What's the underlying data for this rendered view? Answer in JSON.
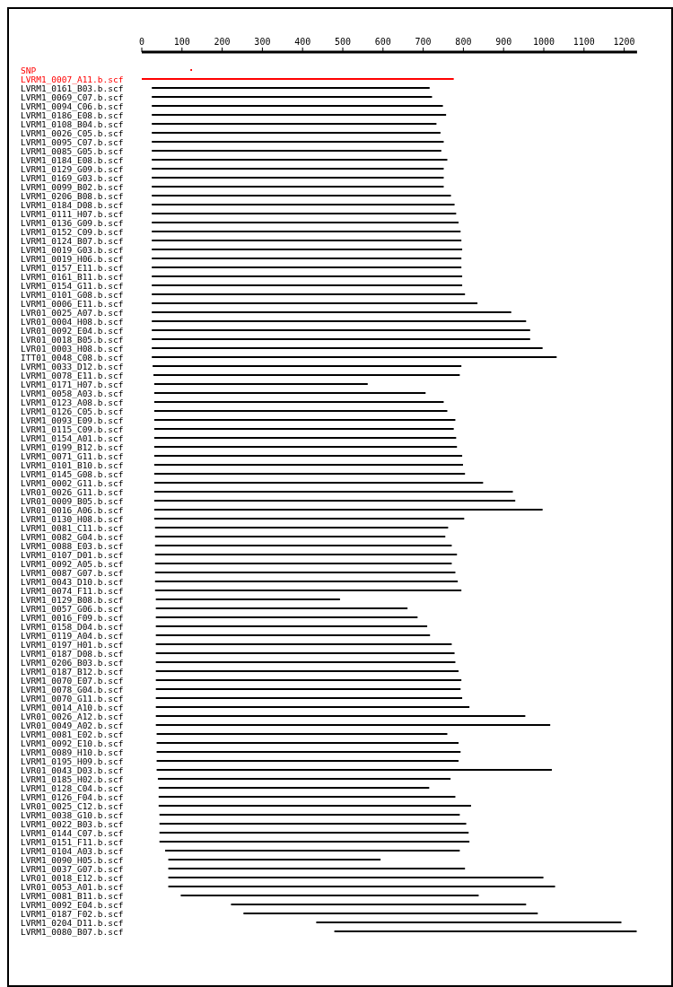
{
  "chart_data": {
    "type": "bar",
    "orientation": "horizontal",
    "categories": [
      "SNP",
      "LVRM1_0007_A11.b.scf",
      "LVRM1_0161_B03.b.scf",
      "LVRM1_0069_C07.b.scf",
      "LVRM1_0094_C06.b.scf",
      "LVRM1_0186_E08.b.scf",
      "LVRM1_0108_B04.b.scf",
      "LVRM1_0026_C05.b.scf",
      "LVRM1_0095_C07.b.scf",
      "LVRM1_0085_G05.b.scf",
      "LVRM1_0184_E08.b.scf",
      "LVRM1_0129_G09.b.scf",
      "LVRM1_0169_G03.b.scf",
      "LVRM1_0099_B02.b.scf",
      "LVRM1_0206_B08.b.scf",
      "LVRM1_0184_D08.b.scf",
      "LVRM1_0111_H07.b.scf",
      "LVRM1_0136_G09.b.scf",
      "LVRM1_0152_C09.b.scf",
      "LVRM1_0124_B07.b.scf",
      "LVRM1_0019_G03.b.scf",
      "LVRM1_0019_H06.b.scf",
      "LVRM1_0157_E11.b.scf",
      "LVRM1_0161_B11.b.scf",
      "LVRM1_0154_G11.b.scf",
      "LVRM1_0101_G08.b.scf",
      "LVRM1_0006_E11.b.scf",
      "LVR01_0025_A07.b.scf",
      "LVR01_0004_H08.b.scf",
      "LVR01_0092_E04.b.scf",
      "LVR01_0018_B05.b.scf",
      "LVR01_0003_H08.b.scf",
      "ITT01_0048_C08.b.scf",
      "LVRM1_0033_D12.b.scf",
      "LVRM1_0078_E11.b.scf",
      "LVRM1_0171_H07.b.scf",
      "LVRM1_0058_A03.b.scf",
      "LVRM1_0123_A08.b.scf",
      "LVRM1_0126_C05.b.scf",
      "LVRM1_0093_E09.b.scf",
      "LVRM1_0115_C09.b.scf",
      "LVRM1_0154_A01.b.scf",
      "LVRM1_0199_B12.b.scf",
      "LVRM1_0071_G11.b.scf",
      "LVRM1_0101_B10.b.scf",
      "LVRM1_0145_G08.b.scf",
      "LVRM1_0002_G11.b.scf",
      "LVR01_0026_G11.b.scf",
      "LVR01_0009_B05.b.scf",
      "LVR01_0016_A06.b.scf",
      "LVRM1_0130_H08.b.scf",
      "LVRM1_0081_C11.b.scf",
      "LVRM1_0082_G04.b.scf",
      "LVRM1_0088_E03.b.scf",
      "LVRM1_0107_D01.b.scf",
      "LVRM1_0092_A05.b.scf",
      "LVRM1_0087_G07.b.scf",
      "LVRM1_0043_D10.b.scf",
      "LVRM1_0074_F11.b.scf",
      "LVRM1_0129_B08.b.scf",
      "LVRM1_0057_G06.b.scf",
      "LVRM1_0016_F09.b.scf",
      "LVRM1_0158_D04.b.scf",
      "LVRM1_0119_A04.b.scf",
      "LVRM1_0197_H01.b.scf",
      "LVRM1_0187_D08.b.scf",
      "LVRM1_0206_B03.b.scf",
      "LVRM1_0187_B12.b.scf",
      "LVRM1_0070_E07.b.scf",
      "LVRM1_0078_G04.b.scf",
      "LVRM1_0070_G11.b.scf",
      "LVRM1_0014_A10.b.scf",
      "LVR01_0026_A12.b.scf",
      "LVR01_0049_A02.b.scf",
      "LVRM1_0081_E02.b.scf",
      "LVRM1_0092_E10.b.scf",
      "LVRM1_0089_H10.b.scf",
      "LVRM1_0195_H09.b.scf",
      "LVR01_0043_D03.b.scf",
      "LVRM1_0185_H02.b.scf",
      "LVRM1_0128_C04.b.scf",
      "LVRM1_0126_F04.b.scf",
      "LVR01_0025_C12.b.scf",
      "LVRM1_0038_G10.b.scf",
      "LVRM1_0022_B03.b.scf",
      "LVRM1_0144_C07.b.scf",
      "LVRM1_0151_F11.b.scf",
      "LVRM1_0104_A03.b.scf",
      "LVRM1_0090_H05.b.scf",
      "LVRM1_0037_G07.b.scf",
      "LVR01_0018_E12.b.scf",
      "LVR01_0053_A01.b.scf",
      "LVRM1_0081_B11.b.scf",
      "LVRM1_0092_E04.b.scf",
      "LVRM1_0187_F02.b.scf",
      "LVRM1_0204_D11.b.scf",
      "LVRM1_0080_B07.b.scf"
    ],
    "base": [
      121,
      0,
      25,
      25,
      25,
      25,
      25,
      25,
      25,
      25,
      25,
      25,
      25,
      25,
      25,
      25,
      25,
      25,
      25,
      25,
      25,
      25,
      25,
      25,
      25,
      25,
      25,
      25,
      25,
      25,
      25,
      25,
      25,
      27,
      29,
      31,
      31,
      31,
      31,
      31,
      31,
      31,
      31,
      31,
      31,
      31,
      31,
      31,
      31,
      31,
      31,
      33,
      33,
      33,
      33,
      33,
      33,
      33,
      33,
      35,
      35,
      35,
      35,
      35,
      35,
      35,
      35,
      35,
      35,
      35,
      35,
      35,
      35,
      35,
      37,
      37,
      37,
      37,
      37,
      40,
      42,
      42,
      42,
      44,
      44,
      44,
      44,
      58,
      66,
      66,
      66,
      66,
      97,
      222,
      253,
      434,
      479
    ],
    "values": [
      4,
      776,
      691,
      697,
      724,
      732,
      708,
      718,
      726,
      720,
      735,
      726,
      726,
      726,
      744,
      753,
      757,
      763,
      768,
      770,
      772,
      770,
      770,
      772,
      772,
      779,
      810,
      894,
      931,
      941,
      941,
      972,
      1007,
      768,
      762,
      531,
      675,
      720,
      729,
      749,
      745,
      751,
      753,
      766,
      768,
      773,
      818,
      892,
      898,
      966,
      771,
      729,
      722,
      738,
      751,
      738,
      747,
      753,
      762,
      458,
      626,
      651,
      675,
      682,
      736,
      743,
      745,
      753,
      760,
      758,
      762,
      780,
      919,
      981,
      723,
      751,
      756,
      751,
      983,
      728,
      673,
      738,
      777,
      747,
      763,
      769,
      771,
      733,
      528,
      738,
      933,
      962,
      741,
      734,
      732,
      759,
      752
    ],
    "colors": [
      "#ff0000",
      "#ff0000",
      "#000000",
      "#000000",
      "#000000",
      "#000000",
      "#000000",
      "#000000",
      "#000000",
      "#000000",
      "#000000",
      "#000000",
      "#000000",
      "#000000",
      "#000000",
      "#000000",
      "#000000",
      "#000000",
      "#000000",
      "#000000",
      "#000000",
      "#000000",
      "#000000",
      "#000000",
      "#000000",
      "#000000",
      "#000000",
      "#000000",
      "#000000",
      "#000000",
      "#000000",
      "#000000",
      "#000000",
      "#000000",
      "#000000",
      "#000000",
      "#000000",
      "#000000",
      "#000000",
      "#000000",
      "#000000",
      "#000000",
      "#000000",
      "#000000",
      "#000000",
      "#000000",
      "#000000",
      "#000000",
      "#000000",
      "#000000",
      "#000000",
      "#000000",
      "#000000",
      "#000000",
      "#000000",
      "#000000",
      "#000000",
      "#000000",
      "#000000",
      "#000000",
      "#000000",
      "#000000",
      "#000000",
      "#000000",
      "#000000",
      "#000000",
      "#000000",
      "#000000",
      "#000000",
      "#000000",
      "#000000",
      "#000000",
      "#000000",
      "#000000",
      "#000000",
      "#000000",
      "#000000",
      "#000000",
      "#000000",
      "#000000",
      "#000000",
      "#000000",
      "#000000",
      "#000000",
      "#000000",
      "#000000",
      "#000000",
      "#000000",
      "#000000",
      "#000000",
      "#000000",
      "#000000",
      "#000000",
      "#000000",
      "#000000",
      "#000000",
      "#000000"
    ],
    "xlim": [
      0,
      1232
    ],
    "xticks": [
      0,
      100,
      200,
      300,
      400,
      500,
      600,
      700,
      800,
      900,
      1000,
      1100,
      1200
    ]
  }
}
